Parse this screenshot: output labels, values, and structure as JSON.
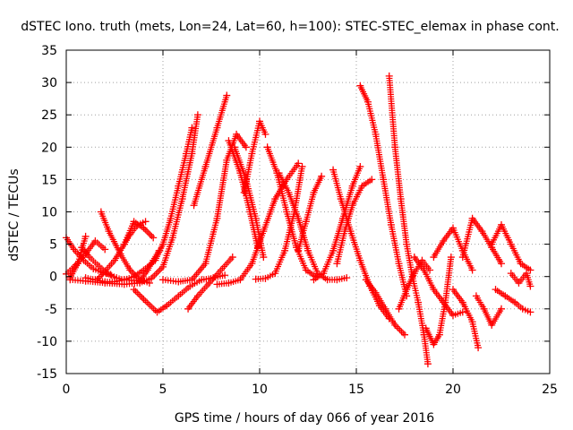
{
  "chart_data": {
    "type": "scatter",
    "title": "dSTEC Iono. truth (mets, Lon=24, Lat=60, h=100): STEC-STEC_elemax in phase cont.",
    "xlabel": "GPS time / hours of day 066 of year 2016",
    "ylabel": "dSTEC  / TECUs",
    "xlim": [
      0,
      25
    ],
    "ylim": [
      -15,
      35
    ],
    "xticks": [
      0,
      5,
      10,
      15,
      20,
      25
    ],
    "yticks": [
      -15,
      -10,
      -5,
      0,
      5,
      10,
      15,
      20,
      25,
      30,
      35
    ],
    "grid": true,
    "marker": "+",
    "color": "#ff0000",
    "series": [
      {
        "x": [
          0.0,
          0.4,
          0.9,
          1.4,
          1.9,
          2.3
        ],
        "y": [
          6.0,
          4.2,
          2.5,
          1.2,
          0.6,
          0.3
        ]
      },
      {
        "x": [
          0.0,
          0.5,
          1.0,
          1.5,
          2.0
        ],
        "y": [
          0.4,
          1.8,
          3.5,
          5.5,
          4.2
        ]
      },
      {
        "x": [
          0.2,
          0.6,
          1.0
        ],
        "y": [
          -0.2,
          2.0,
          6.2
        ]
      },
      {
        "x": [
          0.8,
          1.2,
          1.7,
          2.1,
          2.6,
          3.0,
          3.5,
          4.0
        ],
        "y": [
          4.5,
          3.0,
          1.6,
          0.5,
          -0.2,
          -0.5,
          -0.6,
          -0.6
        ]
      },
      {
        "x": [
          1.6,
          2.0,
          2.5,
          3.0,
          3.5,
          4.0,
          4.5
        ],
        "y": [
          -0.5,
          0.8,
          2.5,
          5.0,
          8.5,
          7.5,
          6.0
        ]
      },
      {
        "x": [
          1.8,
          2.2,
          2.8,
          3.3,
          3.8,
          4.3
        ],
        "y": [
          10.0,
          7.0,
          3.5,
          1.0,
          -0.5,
          -1.0
        ]
      },
      {
        "x": [
          3.0,
          3.3,
          3.7,
          4.1
        ],
        "y": [
          5.0,
          6.5,
          8.0,
          8.5
        ]
      },
      {
        "x": [
          3.8,
          4.2,
          4.5,
          4.8
        ],
        "y": [
          -0.8,
          1.0,
          2.5,
          4.0
        ]
      },
      {
        "x": [
          1.0,
          1.5,
          2.0,
          2.5,
          3.0,
          3.5,
          4.0,
          4.6,
          5.0,
          5.4,
          5.8,
          6.2,
          6.5
        ],
        "y": [
          -0.2,
          -0.5,
          -0.8,
          -0.8,
          -0.5,
          0.0,
          1.0,
          2.5,
          5.0,
          9.0,
          14.0,
          19.0,
          23.0
        ]
      },
      {
        "x": [
          0.2,
          1.0,
          2.0,
          3.0,
          3.8,
          4.4,
          5.0,
          5.5,
          6.0,
          6.5,
          6.8
        ],
        "y": [
          -0.5,
          -0.7,
          -1.0,
          -1.2,
          -1.0,
          -0.3,
          1.5,
          6.0,
          12.0,
          19.0,
          25.0
        ]
      },
      {
        "x": [
          3.5,
          4.0,
          4.7,
          5.2,
          5.8,
          6.4,
          7.0,
          7.6,
          8.2
        ],
        "y": [
          -2.0,
          -3.5,
          -5.5,
          -4.5,
          -3.0,
          -1.5,
          -0.5,
          -0.2,
          0.2
        ]
      },
      {
        "x": [
          5.0,
          5.8,
          6.5,
          7.2,
          7.8,
          8.3,
          8.8,
          9.3
        ],
        "y": [
          -0.5,
          -0.8,
          -0.5,
          2.0,
          9.0,
          18.0,
          22.0,
          20.0
        ]
      },
      {
        "x": [
          6.3,
          6.8,
          7.4,
          8.0,
          8.6
        ],
        "y": [
          -5.0,
          -3.0,
          -1.0,
          1.0,
          3.0
        ]
      },
      {
        "x": [
          6.6,
          7.2,
          7.8,
          8.3
        ],
        "y": [
          11.0,
          17.0,
          23.0,
          28.0
        ]
      },
      {
        "x": [
          8.4,
          9.0,
          9.5,
          9.9
        ],
        "y": [
          21.0,
          16.0,
          10.0,
          4.5
        ]
      },
      {
        "x": [
          7.8,
          8.4,
          9.0,
          9.6,
          10.2,
          10.8,
          11.4,
          12.0
        ],
        "y": [
          -1.2,
          -1.0,
          -0.5,
          2.0,
          7.0,
          12.0,
          15.0,
          17.5
        ]
      },
      {
        "x": [
          8.7,
          9.3,
          9.8,
          10.2
        ],
        "y": [
          20.0,
          15.0,
          9.0,
          3.0
        ]
      },
      {
        "x": [
          9.2,
          9.6,
          10.0,
          10.3
        ],
        "y": [
          13.0,
          19.0,
          24.0,
          22.0
        ]
      },
      {
        "x": [
          9.8,
          10.3,
          10.8,
          11.3,
          11.8,
          12.2
        ],
        "y": [
          -0.4,
          -0.3,
          0.5,
          4.0,
          10.0,
          17.0
        ]
      },
      {
        "x": [
          10.4,
          10.9,
          11.4,
          11.9,
          12.4,
          12.9
        ],
        "y": [
          20.0,
          16.0,
          10.0,
          4.5,
          1.0,
          0.0
        ]
      },
      {
        "x": [
          11.0,
          11.5,
          12.0,
          12.5,
          13.0,
          13.5,
          14.0,
          14.5
        ],
        "y": [
          16.0,
          13.0,
          9.0,
          4.0,
          0.5,
          -0.5,
          -0.5,
          -0.2
        ]
      },
      {
        "x": [
          12.0,
          12.4,
          12.8,
          13.2
        ],
        "y": [
          4.0,
          8.5,
          13.0,
          15.5
        ]
      },
      {
        "x": [
          12.8,
          13.3,
          13.8,
          14.3,
          14.8,
          15.2
        ],
        "y": [
          -0.5,
          0.5,
          4.0,
          9.0,
          14.0,
          17.0
        ]
      },
      {
        "x": [
          13.8,
          14.2,
          14.7,
          15.2,
          15.7,
          16.2,
          16.7
        ],
        "y": [
          16.5,
          12.0,
          7.0,
          2.5,
          -1.5,
          -4.5,
          -6.5
        ]
      },
      {
        "x": [
          14.0,
          14.4,
          14.8,
          15.3,
          15.8
        ],
        "y": [
          2.0,
          7.0,
          11.0,
          14.0,
          15.0
        ]
      },
      {
        "x": [
          15.2,
          15.6,
          16.0,
          16.4,
          16.8,
          17.2,
          17.6
        ],
        "y": [
          29.5,
          27.0,
          22.0,
          15.0,
          8.0,
          2.0,
          -3.0
        ]
      },
      {
        "x": [
          15.5,
          16.0,
          16.5,
          17.0,
          17.5
        ],
        "y": [
          -0.5,
          -2.5,
          -5.0,
          -7.5,
          -9.0
        ]
      },
      {
        "x": [
          16.7,
          17.0,
          17.3,
          17.6,
          17.9,
          18.2,
          18.5,
          18.7
        ],
        "y": [
          31.0,
          20.0,
          12.0,
          5.0,
          0.0,
          -4.0,
          -9.0,
          -13.5
        ]
      },
      {
        "x": [
          17.2,
          17.6,
          18.0,
          18.4,
          18.8
        ],
        "y": [
          -5.0,
          -2.0,
          0.5,
          2.5,
          1.0
        ]
      },
      {
        "x": [
          18.0,
          18.5,
          19.0,
          19.5,
          20.0,
          20.5
        ],
        "y": [
          3.0,
          1.0,
          -2.0,
          -4.0,
          -6.0,
          -5.5
        ]
      },
      {
        "x": [
          18.6,
          19.0,
          19.3,
          19.6,
          19.9
        ],
        "y": [
          -8.0,
          -10.5,
          -9.0,
          -4.0,
          3.0
        ]
      },
      {
        "x": [
          19.0,
          19.5,
          20.0,
          20.5,
          21.0
        ],
        "y": [
          3.0,
          5.5,
          7.5,
          4.0,
          1.0
        ]
      },
      {
        "x": [
          20.0,
          20.5,
          21.0,
          21.3
        ],
        "y": [
          -2.0,
          -4.0,
          -7.0,
          -11.0
        ]
      },
      {
        "x": [
          20.5,
          21.0,
          21.5,
          22.0,
          22.5
        ],
        "y": [
          3.0,
          9.0,
          7.0,
          4.5,
          2.0
        ]
      },
      {
        "x": [
          21.2,
          21.6,
          22.0,
          22.5
        ],
        "y": [
          -3.0,
          -5.0,
          -7.5,
          -5.0
        ]
      },
      {
        "x": [
          22.0,
          22.5,
          23.0,
          23.5,
          24.0
        ],
        "y": [
          5.0,
          8.0,
          5.0,
          2.0,
          1.0
        ]
      },
      {
        "x": [
          22.2,
          22.7,
          23.2,
          23.6,
          24.0
        ],
        "y": [
          -2.0,
          -3.0,
          -4.0,
          -5.0,
          -5.5
        ]
      },
      {
        "x": [
          23.0,
          23.4,
          23.8,
          24.0
        ],
        "y": [
          0.5,
          -1.0,
          0.5,
          -1.5
        ]
      }
    ]
  }
}
